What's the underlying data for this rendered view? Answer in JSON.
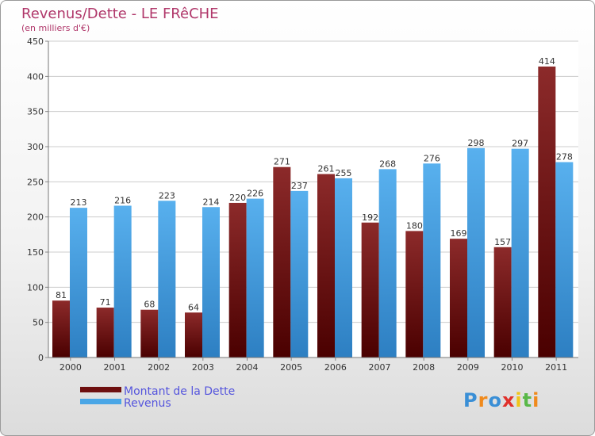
{
  "chart_data": {
    "type": "bar",
    "title": "Revenus/Dette - LE FRêCHE",
    "subtitle": "(en milliers d'€)",
    "categories": [
      "2000",
      "2001",
      "2002",
      "2003",
      "2004",
      "2005",
      "2006",
      "2007",
      "2008",
      "2009",
      "2010",
      "2011"
    ],
    "series": [
      {
        "name": "Montant de la Dette",
        "color": "#7a1515",
        "values": [
          81,
          71,
          68,
          64,
          220,
          271,
          261,
          192,
          180,
          169,
          157,
          414
        ]
      },
      {
        "name": "Revenus",
        "color": "#4aa6e6",
        "values": [
          213,
          216,
          223,
          214,
          226,
          237,
          255,
          268,
          276,
          298,
          297,
          278
        ]
      }
    ],
    "ylim": [
      0,
      450
    ],
    "yticks": [
      0,
      50,
      100,
      150,
      200,
      250,
      300,
      350,
      400,
      450
    ],
    "grid": true,
    "legend_position": "bottom-left"
  },
  "logo": {
    "letters": [
      "P",
      "r",
      "o",
      "x",
      "i",
      "t",
      "i"
    ],
    "colors": [
      "#3a8fd6",
      "#f08a1c",
      "#3a8fd6",
      "#e0302b",
      "#f0c419",
      "#59b847",
      "#f08a1c"
    ]
  }
}
